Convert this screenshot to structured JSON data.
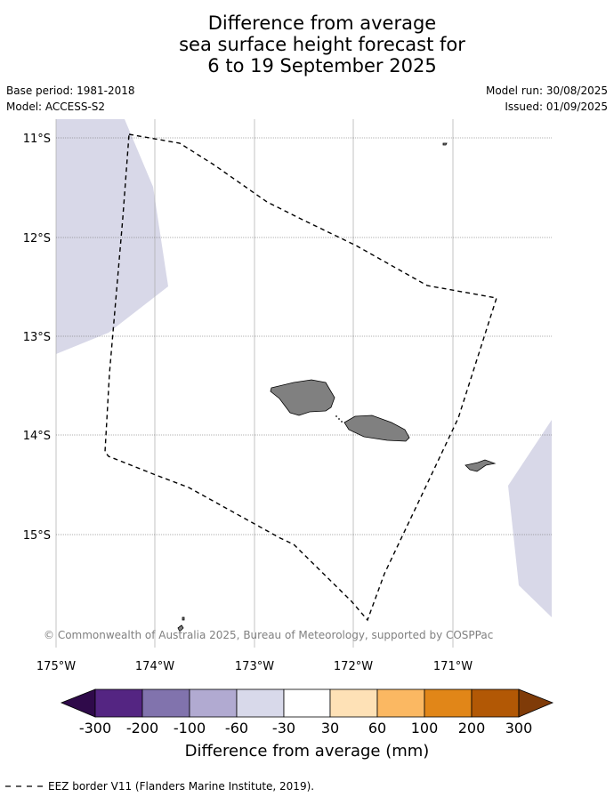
{
  "title": {
    "line1": "Difference from average",
    "line2": "sea surface height forecast for",
    "line3": "6 to 19 September 2025"
  },
  "info": {
    "base_period": "Base period: 1981-2018",
    "model": "Model: ACCESS-S2",
    "model_run": "Model run: 30/08/2025",
    "issued": "Issued: 01/09/2025"
  },
  "map": {
    "lon_ticks": [
      "175°W",
      "174°W",
      "173°W",
      "172°W",
      "171°W"
    ],
    "lat_ticks": [
      "11°S",
      "12°S",
      "13°S",
      "14°S",
      "15°S"
    ],
    "copyright": "© Commonwealth of Australia 2025, Bureau of Meteorology, supported by COSPPac",
    "anomaly_fill_color": "#d8d8e8",
    "land_color": "#808080"
  },
  "colorbar": {
    "title": "Difference from average (mm)",
    "tick_labels": [
      "-300",
      "-200",
      "-100",
      "-60",
      "-30",
      "30",
      "60",
      "100",
      "200",
      "300"
    ],
    "colors": [
      "#2f0a4a",
      "#542582",
      "#8173ad",
      "#b1aad1",
      "#d8d9ea",
      "#ffffff",
      "#fee1b6",
      "#fbb862",
      "#e18618",
      "#b25805",
      "#7f3b08"
    ]
  },
  "footer": {
    "legend_text": "EEZ border V11 (Flanders Marine Institute, 2019)."
  }
}
